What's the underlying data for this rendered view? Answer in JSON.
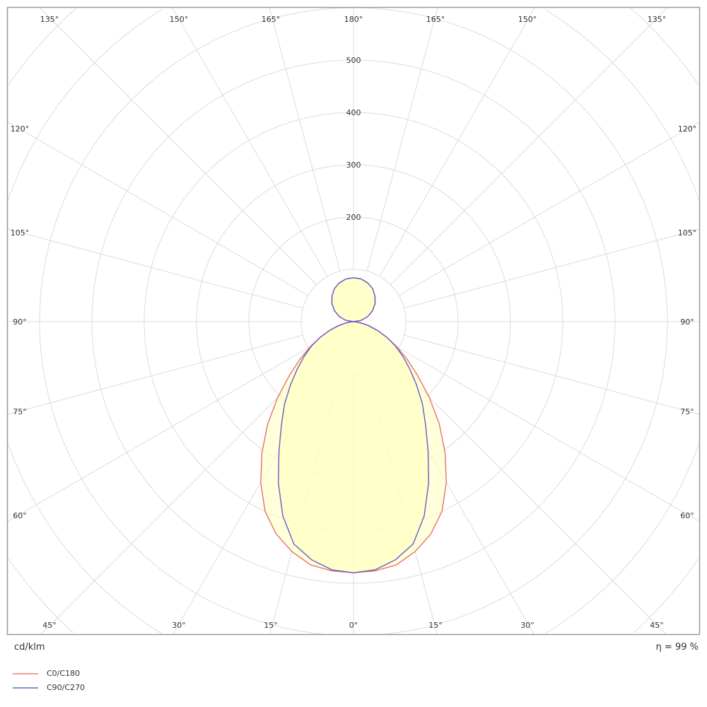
{
  "chart_data": {
    "type": "polar",
    "unit_label": "cd/klm",
    "efficiency_label": "η = 99 %",
    "radial_ticks": [
      200,
      300,
      400,
      500
    ],
    "radial_tick_labels": [
      "200",
      "300",
      "400",
      "500"
    ],
    "ring_step": 100,
    "angle_labels": {
      "bottom": [
        "45°",
        "30°",
        "15°",
        "0°",
        "15°",
        "30°",
        "45°"
      ],
      "left": [
        "60°",
        "75°",
        "90°",
        "105°",
        "120°"
      ],
      "right": [
        "60°",
        "75°",
        "90°",
        "105°",
        "120°"
      ],
      "top": [
        "135°",
        "150°",
        "165°",
        "180°",
        "165°",
        "150°",
        "135°"
      ]
    },
    "grid": true,
    "legend_placement": "bottom-left",
    "fill_color": "#ffffc0",
    "series": [
      {
        "name": "C0/C180",
        "color": "#e8706a",
        "gamma": [
          0,
          5,
          10,
          15,
          20,
          25,
          30,
          35,
          40,
          45,
          50,
          55,
          60,
          65,
          70,
          75,
          80,
          85,
          90,
          100,
          110,
          120,
          130,
          140,
          150,
          160,
          170,
          180
        ],
        "values": [
          480,
          478,
          472,
          455,
          432,
          400,
          355,
          305,
          255,
          205,
          160,
          125,
          95,
          70,
          48,
          30,
          16,
          6,
          0,
          15,
          29,
          42,
          54,
          64,
          73,
          79,
          83,
          84
        ]
      },
      {
        "name": "C90/C270",
        "color": "#6a5acd",
        "gamma": [
          0,
          5,
          10,
          15,
          20,
          25,
          30,
          35,
          40,
          45,
          50,
          55,
          60,
          65,
          70,
          75,
          80,
          85,
          90,
          100,
          110,
          120,
          130,
          140,
          150,
          160,
          170,
          180
        ],
        "values": [
          480,
          476,
          462,
          440,
          395,
          340,
          285,
          240,
          205,
          170,
          140,
          115,
          92,
          70,
          48,
          30,
          16,
          6,
          0,
          15,
          29,
          42,
          54,
          64,
          73,
          79,
          83,
          84
        ]
      }
    ]
  }
}
